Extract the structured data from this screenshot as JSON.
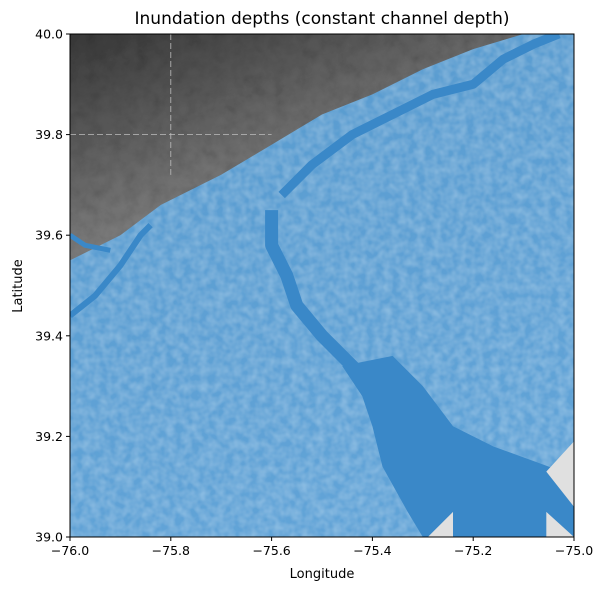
{
  "chart_data": {
    "type": "heatmap",
    "title": "Inundation depths (constant channel depth)",
    "xlabel": "Longitude",
    "ylabel": "Latitude",
    "xlim": [
      -76.0,
      -75.0
    ],
    "ylim": [
      39.0,
      40.0
    ],
    "x_ticks": [
      -76.0,
      -75.8,
      -75.6,
      -75.4,
      -75.2,
      -75.0
    ],
    "x_tick_labels": [
      "−76.0",
      "−75.8",
      "−75.6",
      "−75.4",
      "−75.2",
      "−75.0"
    ],
    "y_ticks": [
      39.0,
      39.2,
      39.4,
      39.6,
      39.8,
      40.0
    ],
    "y_tick_labels": [
      "39.0",
      "39.2",
      "39.4",
      "39.6",
      "39.8",
      "40.0"
    ],
    "grid": false,
    "colors": {
      "water": "#3a88c8",
      "water_light": "#5aa2da",
      "hillshade_dark": "#3c3c3c",
      "hillshade_light": "#d8d8d8",
      "nodata": "#e0e0e0"
    }
  }
}
